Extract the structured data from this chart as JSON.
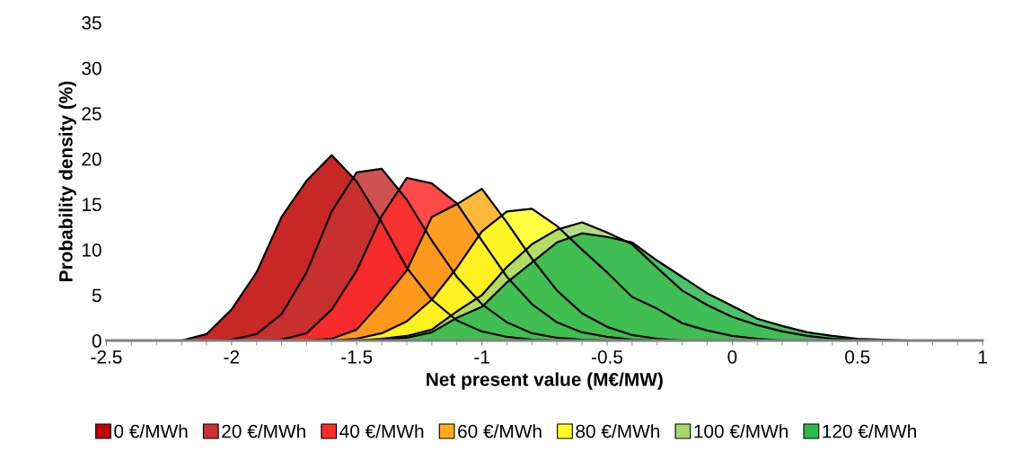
{
  "chart_data": {
    "type": "area",
    "xlabel": "Net present value (M€/MW)",
    "ylabel": "Probability density (%)",
    "x": [
      -2.5,
      -2.4,
      -2.3,
      -2.2,
      -2.1,
      -2.0,
      -1.9,
      -1.8,
      -1.7,
      -1.6,
      -1.5,
      -1.4,
      -1.3,
      -1.2,
      -1.1,
      -1.0,
      -0.9,
      -0.8,
      -0.7,
      -0.6,
      -0.5,
      -0.4,
      -0.3,
      -0.2,
      -0.1,
      0.0,
      0.1,
      0.2,
      0.3,
      0.4,
      0.5,
      0.6,
      0.7,
      0.8,
      0.9,
      1.0
    ],
    "xlim": [
      -2.5,
      1
    ],
    "xticks": [
      -2.5,
      -2,
      -1.5,
      -1,
      -0.5,
      0,
      0.5,
      1
    ],
    "ylim": [
      0,
      35
    ],
    "yticks": [
      0,
      5,
      10,
      15,
      20,
      25,
      30,
      35
    ],
    "grid": false,
    "legend": "bottom",
    "series": [
      {
        "name": "0 €/MWh",
        "color": "#c00000",
        "values": [
          0,
          0,
          0,
          0,
          0.7,
          3.4,
          7.5,
          13.6,
          17.6,
          20.4,
          17.5,
          13,
          8,
          4.5,
          2.2,
          1.0,
          0.4,
          0.1,
          0,
          0,
          0,
          0,
          0,
          0,
          0,
          0,
          0,
          0,
          0,
          0,
          0,
          0,
          0,
          0,
          0,
          0
        ]
      },
      {
        "name": "20 €/MWh",
        "color": "#c83232",
        "values": [
          0,
          0,
          0,
          0,
          0,
          0.1,
          0.7,
          2.9,
          7.5,
          14.2,
          18.5,
          18.9,
          15.5,
          11,
          7,
          4,
          2,
          0.8,
          0.3,
          0.1,
          0,
          0,
          0,
          0,
          0,
          0,
          0,
          0,
          0,
          0,
          0,
          0,
          0,
          0,
          0,
          0
        ]
      },
      {
        "name": "40 €/MWh",
        "color": "#ff2a2a",
        "values": [
          0,
          0,
          0,
          0,
          0,
          0,
          0,
          0.1,
          0.8,
          3.4,
          7.7,
          13.7,
          17.9,
          17.3,
          15.1,
          11,
          7,
          4,
          2,
          0.9,
          0.4,
          0.1,
          0,
          0,
          0,
          0,
          0,
          0,
          0,
          0,
          0,
          0,
          0,
          0,
          0,
          0
        ]
      },
      {
        "name": "60 €/MWh",
        "color": "#ffab1a",
        "values": [
          0,
          0,
          0,
          0,
          0,
          0,
          0,
          0,
          0,
          0.2,
          1.2,
          4.3,
          7.7,
          13.6,
          15.0,
          16.7,
          13,
          9,
          5.5,
          3,
          1.5,
          0.6,
          0.2,
          0,
          0,
          0,
          0,
          0,
          0,
          0,
          0,
          0,
          0,
          0,
          0,
          0
        ]
      },
      {
        "name": "80 €/MWh",
        "color": "#ffff20",
        "values": [
          0,
          0,
          0,
          0,
          0,
          0,
          0,
          0,
          0,
          0,
          0.2,
          0.8,
          2.1,
          4.5,
          8.0,
          12.0,
          14.2,
          14.5,
          12.6,
          10,
          7.5,
          4.8,
          3.5,
          1.9,
          1.1,
          0.5,
          0.2,
          0,
          0,
          0,
          0,
          0,
          0,
          0,
          0,
          0
        ]
      },
      {
        "name": "100 €/MWh",
        "color": "#a6d86a",
        "values": [
          0,
          0,
          0,
          0,
          0,
          0,
          0,
          0,
          0,
          0,
          0,
          0.2,
          0.5,
          1.2,
          3.2,
          5.0,
          8.1,
          10.6,
          12.2,
          13.0,
          11.9,
          10.6,
          8,
          5.5,
          3.9,
          2.6,
          1.7,
          1.0,
          0.5,
          0.2,
          0.1,
          0,
          0,
          0,
          0,
          0
        ]
      },
      {
        "name": "120 €/MWh",
        "color": "#2bb84f",
        "values": [
          0,
          0,
          0,
          0,
          0,
          0,
          0,
          0,
          0,
          0,
          0,
          0.1,
          0.3,
          0.9,
          2.5,
          3.7,
          6.4,
          8.6,
          10.8,
          11.8,
          11.4,
          10.8,
          8.8,
          7.0,
          5.2,
          3.8,
          2.4,
          1.6,
          0.9,
          0.5,
          0.2,
          0.1,
          0,
          0,
          0,
          0
        ]
      }
    ]
  }
}
